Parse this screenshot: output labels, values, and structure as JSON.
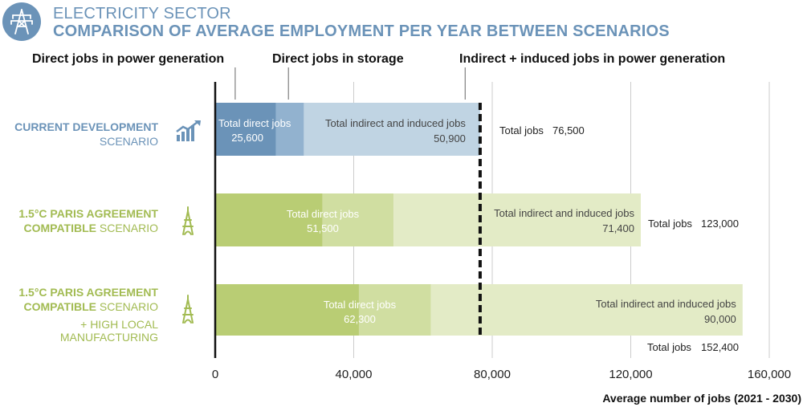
{
  "header": {
    "title": "ELECTRICITY SECTOR",
    "subtitle": "COMPARISON OF AVERAGE EMPLOYMENT PER YEAR BETWEEN SCENARIOS",
    "icon": "power-pylon-icon"
  },
  "colors": {
    "blue_dark": "#6b93b8",
    "blue_mid": "#92b2cf",
    "blue_light": "#c0d4e3",
    "green_dark": "#b9cd74",
    "green_mid": "#d0dea1",
    "green_light": "#e3ebc6",
    "blue_label": "#6b93b8",
    "green_label": "#a2bb52"
  },
  "chart_data": {
    "type": "bar",
    "orientation": "horizontal",
    "stacked": true,
    "top_labels": [
      "Direct jobs in power generation",
      "Direct jobs in storage",
      "Indirect + induced jobs in power generation"
    ],
    "xlabel": "Average number of jobs (2021 - 2030)",
    "xlim": [
      0,
      160000
    ],
    "xticks": [
      0,
      40000,
      80000,
      120000,
      160000
    ],
    "xtick_labels": [
      "0",
      "40,000",
      "80,000",
      "120,000",
      "160,000"
    ],
    "grid": true,
    "reference_line": {
      "x": 76500
    },
    "series_names": [
      "Direct jobs in power generation",
      "Direct jobs in storage",
      "Indirect + induced jobs in power generation"
    ],
    "categories": [
      {
        "label_bold": "CURRENT DEVELOPMENT",
        "label_line2_bold": "",
        "label_line2_light": "SCENARIO",
        "label_extra": [],
        "icon": "trend-up-chart-icon",
        "palette": "blue",
        "segments": [
          17500,
          8100,
          50900
        ],
        "direct_label": "Total direct jobs",
        "direct_value": "25,600",
        "indirect_label": "Total indirect and induced jobs",
        "indirect_value": "50,900",
        "total_label": "Total jobs",
        "total_value": "76,500"
      },
      {
        "label_bold": "1.5°C PARIS AGREEMENT",
        "label_line2_bold": "COMPATIBLE",
        "label_line2_light": " SCENARIO",
        "label_extra": [],
        "icon": "eiffel-tower-icon",
        "palette": "green",
        "segments": [
          31000,
          20500,
          71400
        ],
        "direct_label": "Total direct jobs",
        "direct_value": "51,500",
        "indirect_label": "Total indirect and induced jobs",
        "indirect_value": "71,400",
        "total_label": "Total jobs",
        "total_value": "123,000"
      },
      {
        "label_bold": "1.5°C PARIS AGREEMENT",
        "label_line2_bold": "COMPATIBLE",
        "label_line2_light": " SCENARIO",
        "label_extra": [
          "+ HIGH LOCAL",
          "MANUFACTURING"
        ],
        "icon": "eiffel-tower-icon",
        "palette": "green",
        "segments": [
          41500,
          20800,
          90000
        ],
        "direct_label": "Total direct jobs",
        "direct_value": "62,300",
        "indirect_label": "Total indirect and induced jobs",
        "indirect_value": "90,000",
        "total_label": "Total jobs",
        "total_value": "152,400"
      }
    ]
  }
}
